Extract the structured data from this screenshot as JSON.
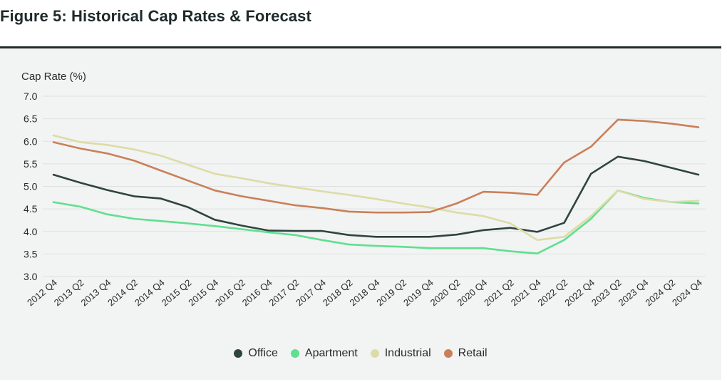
{
  "figure_title": "Figure 5: Historical Cap Rates & Forecast",
  "chart_data": {
    "type": "line",
    "ylabel": "Cap Rate (%)",
    "xlabel": "",
    "ylim": [
      3.0,
      7.0
    ],
    "yticks": [
      "7.0",
      "6.5",
      "6.0",
      "5.5",
      "5.0",
      "4.5",
      "4.0",
      "3.5",
      "3.0"
    ],
    "grid": true,
    "legend_position": "bottom",
    "x_labels": [
      "2012 Q4",
      "2013 Q2",
      "2013 Q4",
      "2014 Q2",
      "2014 Q4",
      "2015 Q2",
      "2015 Q4",
      "2016 Q2",
      "2016 Q4",
      "2017 Q2",
      "2017 Q4",
      "2018 Q2",
      "2018 Q4",
      "2019 Q2",
      "2019 Q4",
      "2020 Q2",
      "2020 Q4",
      "2021 Q2",
      "2021 Q4",
      "2022 Q2",
      "2022 Q4",
      "2023 Q2",
      "2023 Q4",
      "2024 Q2",
      "2024 Q4"
    ],
    "series": [
      {
        "name": "Office",
        "color": "#2f4340",
        "values": [
          5.26,
          5.08,
          4.92,
          4.78,
          4.73,
          4.54,
          4.26,
          4.13,
          4.02,
          4.01,
          4.01,
          3.92,
          3.88,
          3.88,
          3.88,
          3.93,
          4.03,
          4.08,
          3.99,
          4.19,
          5.28,
          5.66,
          5.56,
          5.41,
          5.26
        ]
      },
      {
        "name": "Apartment",
        "color": "#5ee08f",
        "values": [
          4.65,
          4.55,
          4.38,
          4.28,
          4.23,
          4.18,
          4.12,
          4.05,
          3.98,
          3.92,
          3.81,
          3.71,
          3.68,
          3.66,
          3.63,
          3.63,
          3.63,
          3.56,
          3.51,
          3.81,
          4.28,
          4.91,
          4.74,
          4.65,
          4.62
        ]
      },
      {
        "name": "Industrial",
        "color": "#dcdca6",
        "values": [
          6.13,
          5.98,
          5.92,
          5.82,
          5.68,
          5.48,
          5.28,
          5.18,
          5.07,
          4.98,
          4.89,
          4.81,
          4.72,
          4.62,
          4.53,
          4.42,
          4.34,
          4.18,
          3.81,
          3.88,
          4.34,
          4.91,
          4.72,
          4.65,
          4.68
        ]
      },
      {
        "name": "Retail",
        "color": "#c9805a",
        "values": [
          5.98,
          5.84,
          5.73,
          5.57,
          5.35,
          5.13,
          4.91,
          4.78,
          4.68,
          4.58,
          4.52,
          4.44,
          4.42,
          4.42,
          4.43,
          4.62,
          4.88,
          4.86,
          4.81,
          5.53,
          5.88,
          6.48,
          6.45,
          6.39,
          6.31
        ]
      }
    ]
  }
}
